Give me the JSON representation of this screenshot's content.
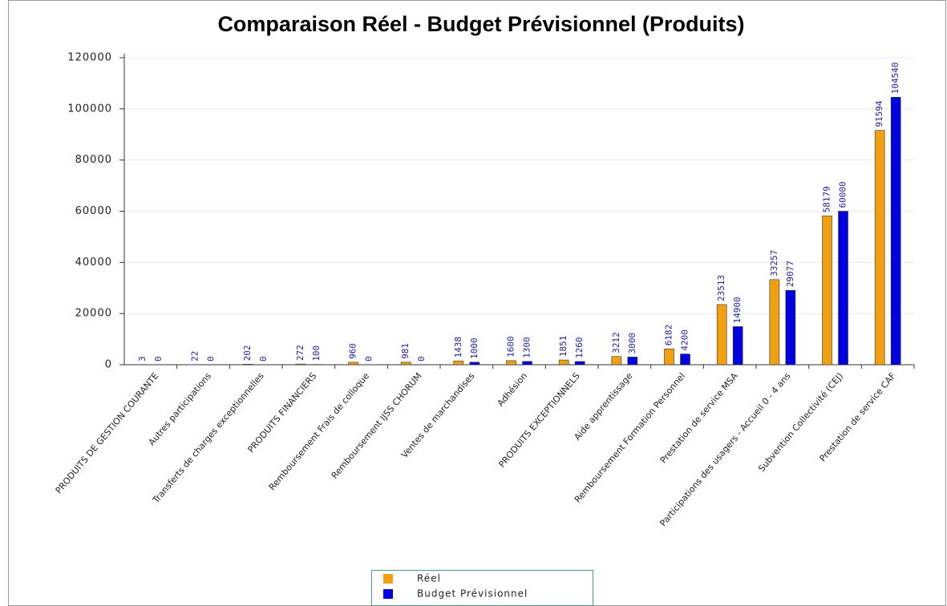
{
  "chart_data": {
    "type": "bar",
    "title": "Comparaison Réel - Budget Prévisionnel (Produits)",
    "categories": [
      "PRODUITS DE GESTION COURANTE",
      "Autres participations",
      "Transferts de charges exceptionnelles",
      "PRODUITS FINANCIERS",
      "Remboursement Frais de colloque",
      "Remboursement IJSS CHORUM",
      "Ventes de marchandises",
      "Adhésion",
      "PRODUITS EXCEPTIONNELS",
      "Aide apprentissage",
      "Remboursement Formation Personnel",
      "Prestation de service MSA",
      "Participations des usagers - Accueil 0 - 4 ans",
      "Subvention Collectivité (CEJ)",
      "Prestation de service CAF"
    ],
    "series": [
      {
        "name": "Réel",
        "color": "#f0a010",
        "values": [
          3,
          22,
          202,
          272,
          960,
          981,
          1438,
          1600,
          1851,
          3212,
          6182,
          23513,
          33257,
          58179,
          91594
        ]
      },
      {
        "name": "Budget Prévisionnel",
        "color": "#0000e0",
        "values": [
          0,
          0,
          0,
          100,
          0,
          0,
          1000,
          1300,
          1260,
          3000,
          4200,
          14900,
          29077,
          60000,
          104540
        ]
      }
    ],
    "ylim": [
      0,
      120000
    ],
    "yticks": [
      0,
      20000,
      40000,
      60000,
      80000,
      100000,
      120000
    ],
    "grid": true,
    "legend": "bottom"
  }
}
